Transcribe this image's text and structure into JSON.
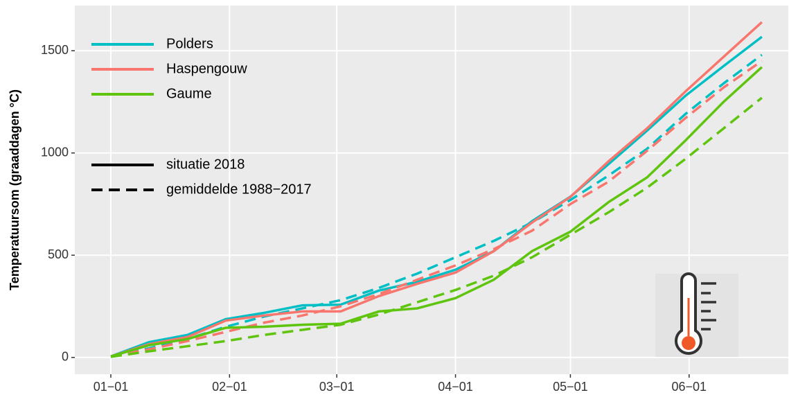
{
  "chart_data": {
    "type": "line",
    "y_label": "Temperatuursom (graaddagen °C)",
    "x": [
      0,
      10,
      20,
      30,
      40,
      50,
      60,
      70,
      80,
      90,
      100,
      110,
      120,
      130,
      140,
      150,
      160,
      170
    ],
    "xlim": [
      -9.4,
      176.9
    ],
    "xticks": [
      {
        "value": 0,
        "label": "01−01"
      },
      {
        "value": 31,
        "label": "02−01"
      },
      {
        "value": 59,
        "label": "03−01"
      },
      {
        "value": 90,
        "label": "04−01"
      },
      {
        "value": 120,
        "label": "05−01"
      },
      {
        "value": 151,
        "label": "06−01"
      }
    ],
    "ylim": [
      -82,
      1721
    ],
    "yticks": [
      0,
      500,
      1000,
      1500
    ],
    "grid": true,
    "legend": "top-left",
    "series": [
      {
        "name": "Polders",
        "color": "#00bfc4",
        "values": [
          5,
          75,
          110,
          187,
          218,
          255,
          258,
          327,
          370,
          429,
          520,
          667,
          786,
          946,
          1109,
          1279,
          1425,
          1568
        ],
        "mean_values": [
          5,
          45,
          90,
          150,
          200,
          240,
          280,
          340,
          410,
          490,
          570,
          660,
          770,
          890,
          1020,
          1190,
          1340,
          1480
        ]
      },
      {
        "name": "Haspengouw",
        "color": "#f8766d",
        "values": [
          5,
          65,
          100,
          180,
          205,
          225,
          225,
          300,
          360,
          415,
          520,
          660,
          785,
          960,
          1120,
          1300,
          1470,
          1640
        ],
        "mean_values": [
          5,
          40,
          80,
          125,
          170,
          205,
          250,
          310,
          380,
          450,
          530,
          620,
          750,
          860,
          1010,
          1170,
          1320,
          1450
        ]
      },
      {
        "name": "Gaume",
        "color": "#5ec40d",
        "values": [
          5,
          60,
          90,
          145,
          150,
          160,
          165,
          225,
          240,
          290,
          380,
          520,
          615,
          760,
          880,
          1060,
          1250,
          1420
        ],
        "mean_values": [
          3,
          30,
          55,
          80,
          110,
          135,
          160,
          210,
          270,
          330,
          400,
          490,
          600,
          710,
          830,
          970,
          1120,
          1270
        ]
      }
    ],
    "linetypes": [
      {
        "name": "situatie 2018",
        "dash": "solid"
      },
      {
        "name": "gemiddelde 1988−2017",
        "dash": "dashed"
      }
    ]
  }
}
